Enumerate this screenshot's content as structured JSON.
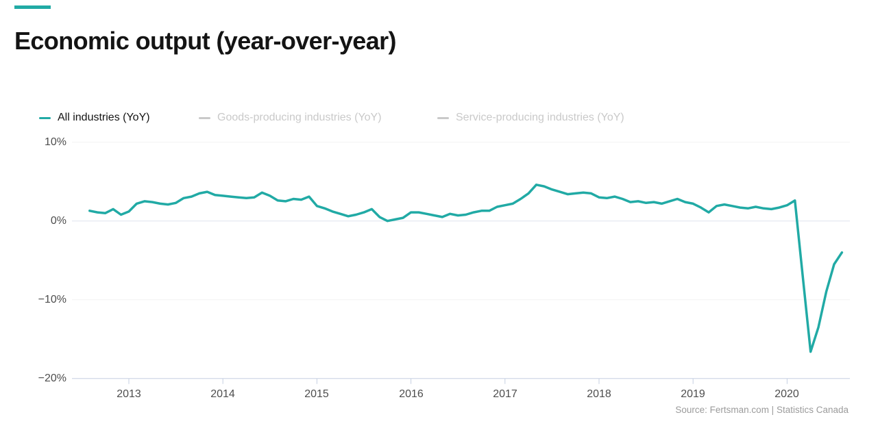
{
  "colors": {
    "accent": "#21aaa5",
    "muted": "#c9c9c9",
    "text_dark": "#141414",
    "axis_text": "#4d4d4d",
    "source_text": "#9b9b9b",
    "gridline": "#f2f2f2",
    "zero_line": "#dfe3ed",
    "axis_line": "#c5cfe2"
  },
  "header": {
    "title": "Economic output (year-over-year)"
  },
  "legend": {
    "items": [
      {
        "label": "All industries (YoY)",
        "active": true
      },
      {
        "label": "Goods-producing industries (YoY)",
        "active": false
      },
      {
        "label": "Service-producing industries (YoY)",
        "active": false
      }
    ]
  },
  "chart_data": {
    "type": "line",
    "title": "Economic output (year-over-year)",
    "x_unit": "month",
    "x_range": [
      "2012-08",
      "2020-08"
    ],
    "x_tick_labels": [
      "2013",
      "2014",
      "2015",
      "2016",
      "2017",
      "2018",
      "2019",
      "2020"
    ],
    "y_tick_labels": [
      "10%",
      "0%",
      "−10%",
      "−20%"
    ],
    "y_ticks": [
      10,
      0,
      -10,
      -20
    ],
    "ylim": [
      -20,
      10
    ],
    "y_unit": "%",
    "grid": "horizontal",
    "legend_position": "top",
    "series": [
      {
        "name": "All industries (YoY)",
        "color": "#21aaa5",
        "visible": true,
        "start": "2012-08",
        "frequency": "monthly",
        "values": [
          1.3,
          1.1,
          1.0,
          1.5,
          0.8,
          1.2,
          2.2,
          2.5,
          2.4,
          2.2,
          2.1,
          2.3,
          2.9,
          3.1,
          3.5,
          3.7,
          3.3,
          3.2,
          3.1,
          3.0,
          2.9,
          3.0,
          3.6,
          3.2,
          2.6,
          2.5,
          2.8,
          2.7,
          3.1,
          1.9,
          1.6,
          1.2,
          0.9,
          0.6,
          0.8,
          1.1,
          1.5,
          0.5,
          0.0,
          0.2,
          0.4,
          1.1,
          1.1,
          0.9,
          0.7,
          0.5,
          0.9,
          0.7,
          0.8,
          1.1,
          1.3,
          1.3,
          1.8,
          2.0,
          2.2,
          2.8,
          3.5,
          4.6,
          4.4,
          4.0,
          3.7,
          3.4,
          3.5,
          3.6,
          3.5,
          3.0,
          2.9,
          3.1,
          2.8,
          2.4,
          2.5,
          2.3,
          2.4,
          2.2,
          2.5,
          2.8,
          2.4,
          2.2,
          1.7,
          1.1,
          1.9,
          2.1,
          1.9,
          1.7,
          1.6,
          1.8,
          1.6,
          1.5,
          1.7,
          2.0,
          2.6,
          -7.0,
          -16.6,
          -13.5,
          -9.0,
          -5.5,
          -4.0
        ]
      },
      {
        "name": "Goods-producing industries (YoY)",
        "color": "#c9c9c9",
        "visible": false,
        "values": []
      },
      {
        "name": "Service-producing industries (YoY)",
        "color": "#c9c9c9",
        "visible": false,
        "values": []
      }
    ]
  },
  "footer": {
    "source": "Source: Fertsman.com | Statistics Canada"
  }
}
